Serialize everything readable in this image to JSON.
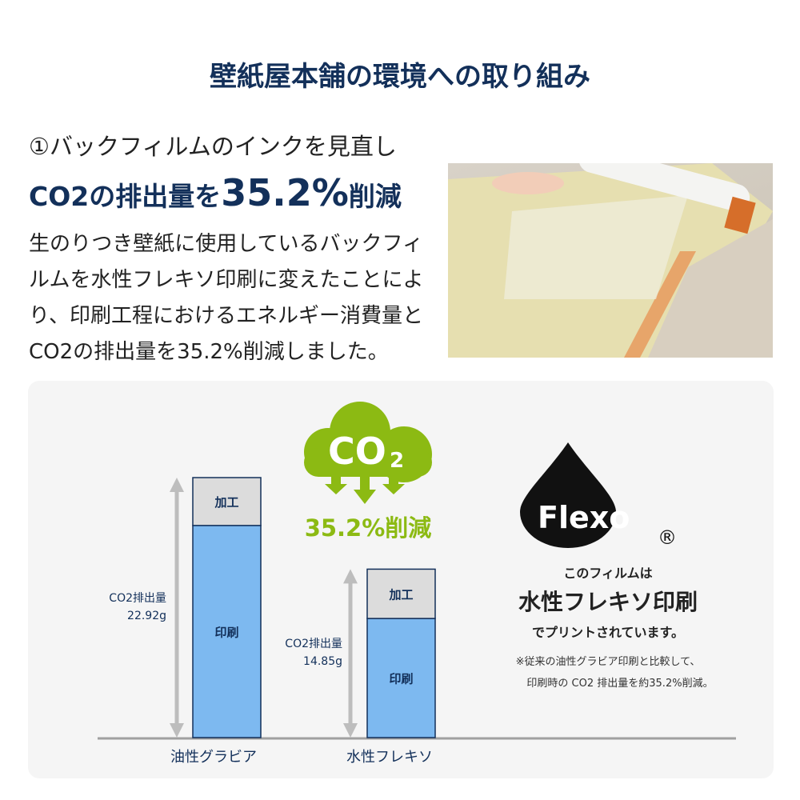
{
  "title": "壁紙屋本舗の環境への取り組み",
  "heading": {
    "line1": "①バックフィルムのインクを見直し",
    "line2_pre": "CO2の排出量を",
    "line2_big": "35.2%",
    "line2_post": "削減"
  },
  "body": "生のりつき壁紙に使用しているバックフィルムを水性フレキソ印刷に変えたことにより、印刷工程におけるエネルギー消費量とCO2の排出量を35.2%削減しました。",
  "cloud": {
    "label": "CO",
    "sub": "2",
    "reduction": "35.2%削減"
  },
  "flexo": {
    "logo": "Flexo",
    "registered": "®",
    "line1": "このフィルムは",
    "line2": "水性フレキソ印刷",
    "line3": "でプリントされています。",
    "note1": "※従来の油性グラビア印刷と比較して、",
    "note2": "印刷時の CO2 排出量を約35.2%削減。"
  },
  "colors": {
    "navy": "#13305a",
    "green": "#8cba13",
    "print_blue": "#7db9f0",
    "process_gray": "#dcdcdc"
  },
  "chart_data": {
    "type": "bar",
    "stacked": true,
    "categories": [
      "油性グラビア",
      "水性フレキソ"
    ],
    "series": [
      {
        "name": "印刷",
        "values": [
          18.7,
          10.5
        ]
      },
      {
        "name": "加工",
        "values": [
          4.22,
          4.35
        ]
      }
    ],
    "totals": [
      {
        "label": "CO2排出量",
        "value": "22.92g"
      },
      {
        "label": "CO2排出量",
        "value": "14.85g"
      }
    ],
    "ylim": [
      0,
      22.92
    ],
    "grid": false
  }
}
